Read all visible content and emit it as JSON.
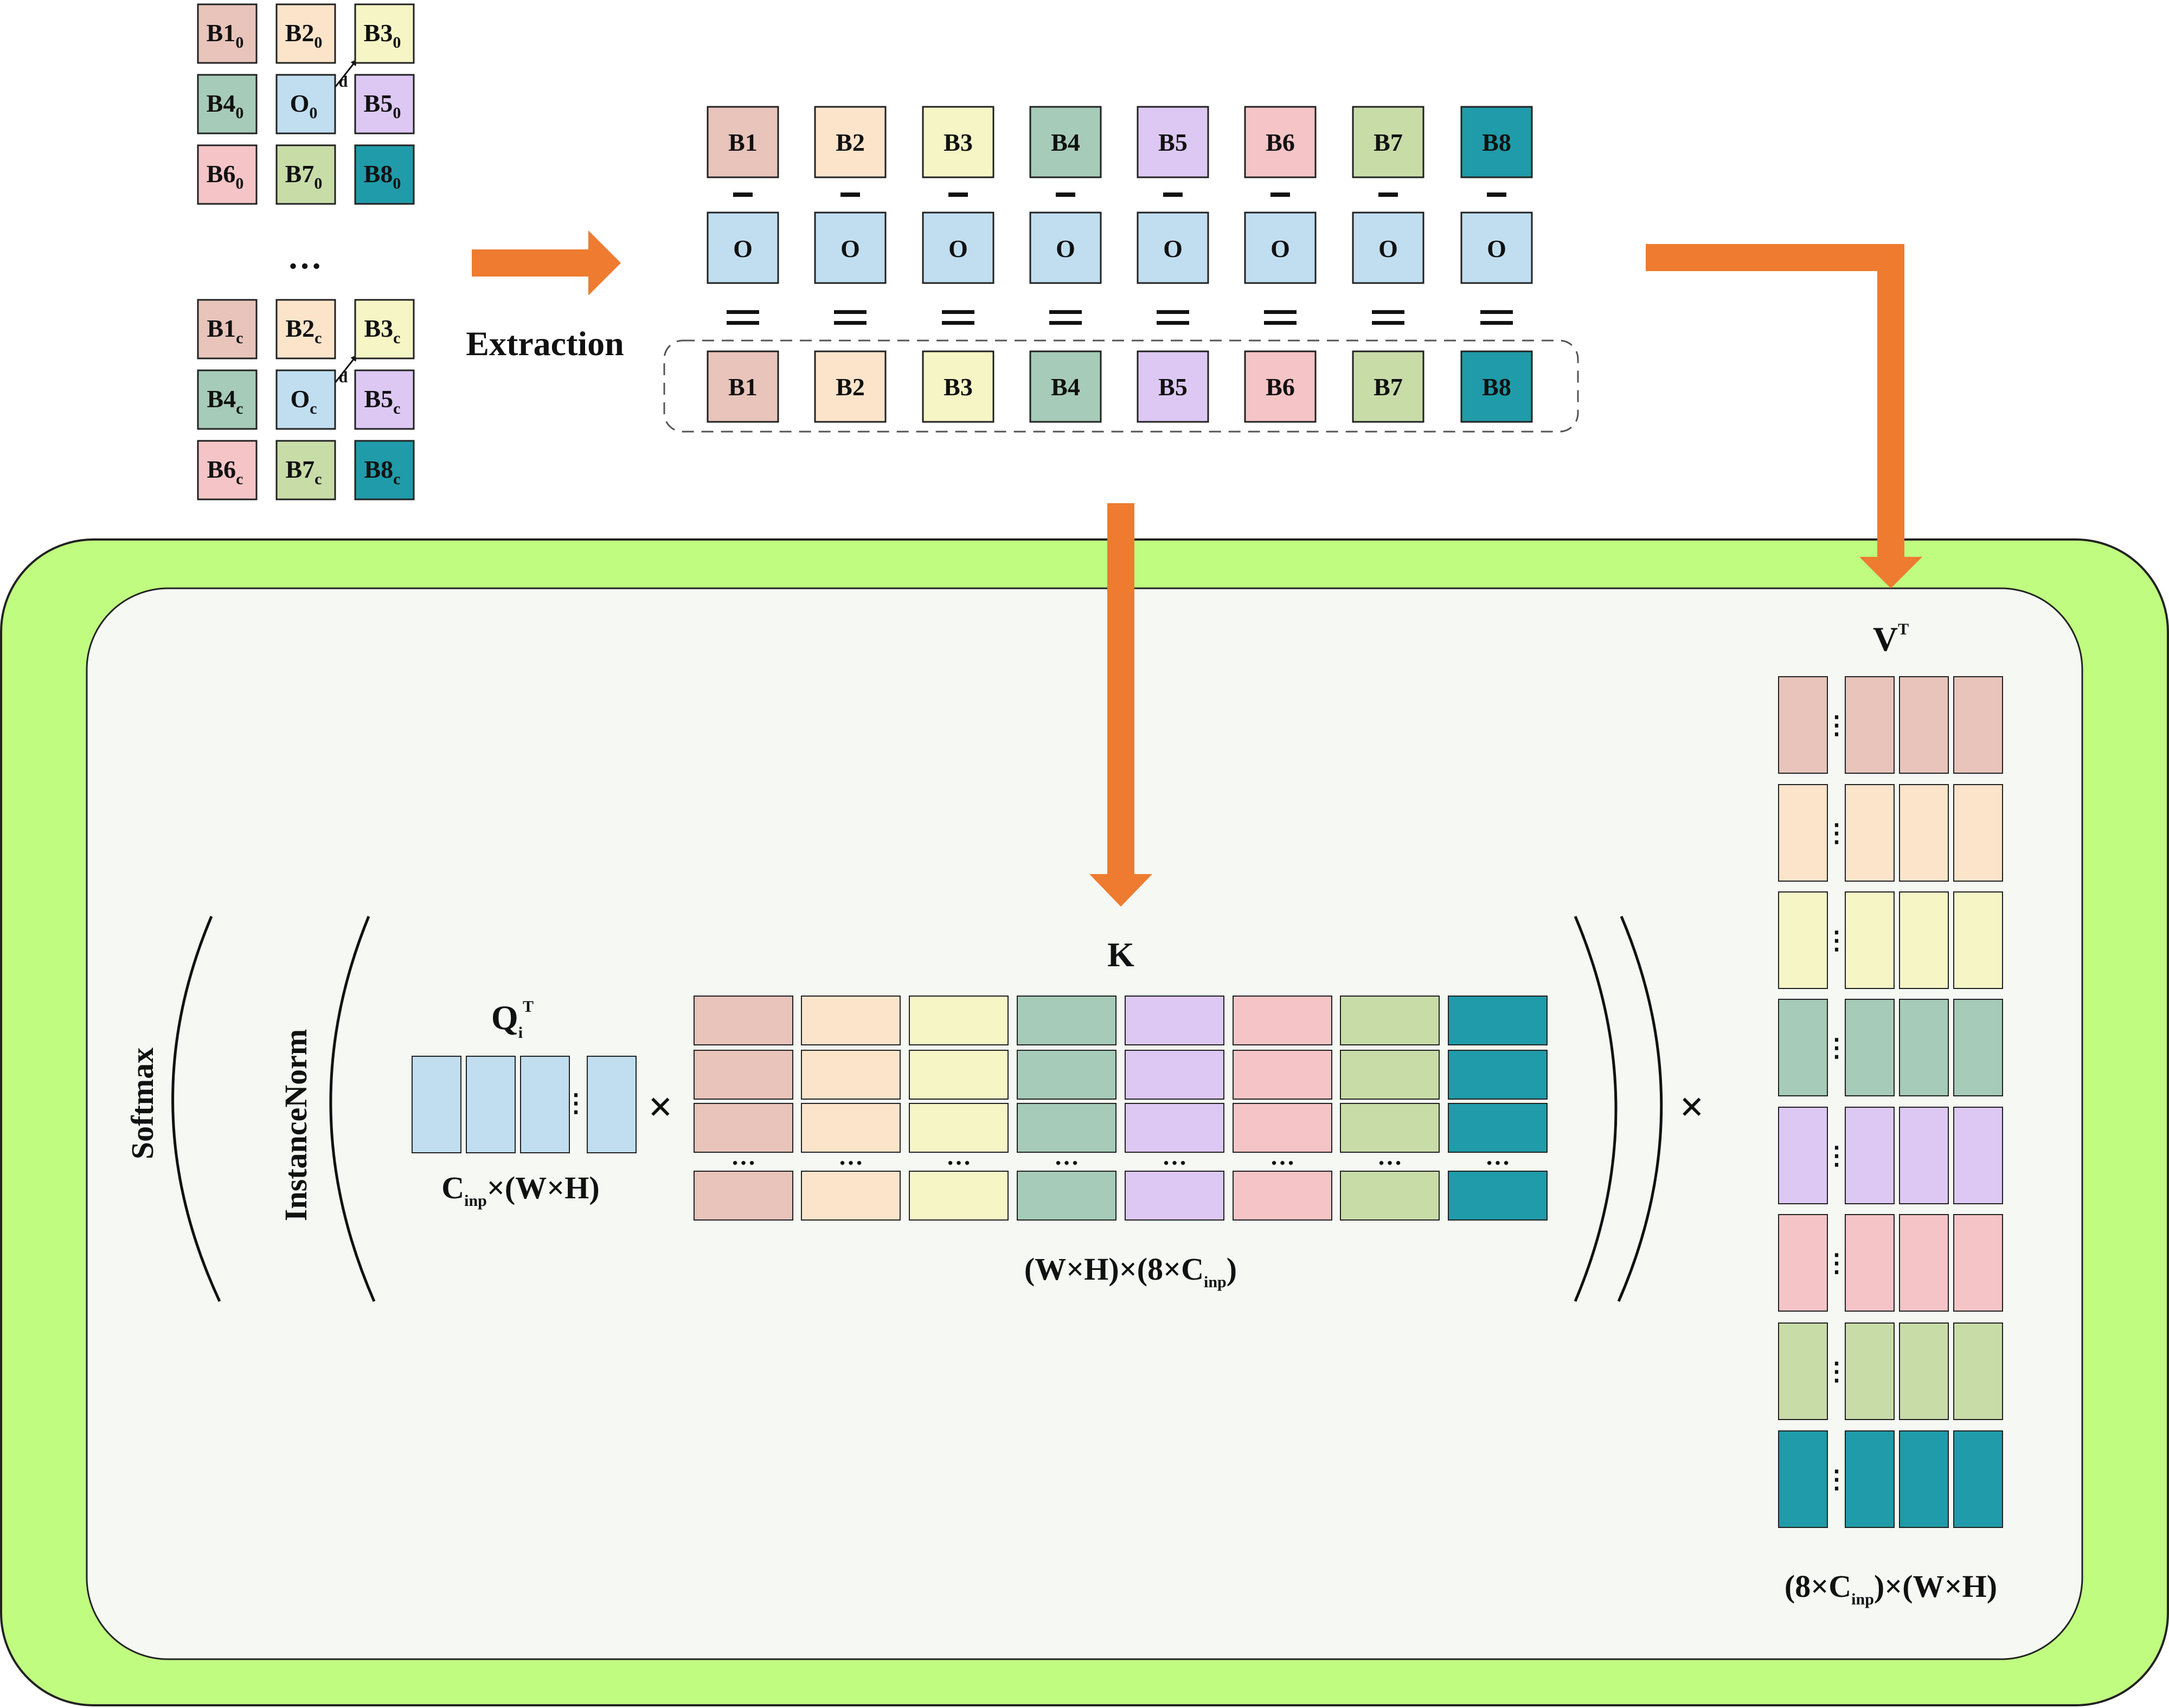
{
  "colors": {
    "B1": "#e8c4bb",
    "B2": "#fce4cb",
    "B3": "#f5f5c6",
    "B4": "#a6cbb8",
    "B5": "#ddc8f4",
    "B6": "#f5c4c6",
    "B7": "#c8dca8",
    "B8": "#209ba9",
    "O": "#c0def0",
    "arrow": "#ee7b30",
    "outer": "#c0fc80",
    "inner": "#f5f8f3"
  },
  "neighborhood": {
    "grid_top": [
      [
        "B1",
        "B2",
        "B3"
      ],
      [
        "B4",
        "O",
        "B5"
      ],
      [
        "B6",
        "B7",
        "B8"
      ]
    ],
    "sub_top": "0",
    "grid_bottom": [
      [
        "B1",
        "B2",
        "B3"
      ],
      [
        "B4",
        "O",
        "B5"
      ],
      [
        "B6",
        "B7",
        "B8"
      ]
    ],
    "sub_bottom": "c",
    "d_label": "d",
    "ellipsis": "…"
  },
  "extraction": {
    "label": "Extraction",
    "top_row": [
      "B1",
      "B2",
      "B3",
      "B4",
      "B5",
      "B6",
      "B7",
      "B8"
    ],
    "center_label": "O",
    "minus": "-",
    "equals": "=",
    "result_row": [
      "B1",
      "B2",
      "B3",
      "B4",
      "B5",
      "B6",
      "B7",
      "B8"
    ]
  },
  "attention": {
    "softmax_label": "Softmax",
    "instancenorm_label": "InstanceNorm",
    "q": {
      "main": "Q",
      "sub": "i",
      "sup": "T"
    },
    "q_dims": {
      "pre": "C",
      "sub": "inp",
      "post": "×(W×H)"
    },
    "k_label": "K",
    "k_dims": {
      "pre": "(W×H)×(8×C",
      "sub": "inp",
      "post": ")"
    },
    "v": {
      "main": "V",
      "sup": "T"
    },
    "v_dims": {
      "pre": "(8×C",
      "sub": "inp",
      "post": ")×(W×H)"
    },
    "times": "×",
    "col_dots": "⋮",
    "row_dots": "…"
  }
}
